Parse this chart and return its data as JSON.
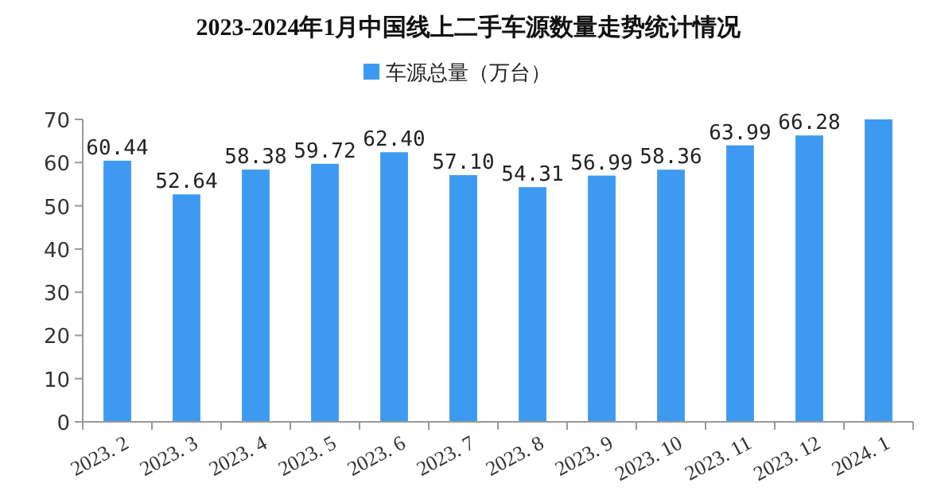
{
  "chart_data": {
    "type": "bar",
    "title": "2023-2024年1月中国线上二手车源数量走势统计情况",
    "categories": [
      "2023. 2",
      "2023. 3",
      "2023. 4",
      "2023. 5",
      "2023. 6",
      "2023. 7",
      "2023. 8",
      "2023. 9",
      "2023. 10",
      "2023. 11",
      "2023. 12",
      "2024. 1"
    ],
    "series": [
      {
        "name": "车源总量（万台）",
        "color": "#3d9af0",
        "values": [
          60.44,
          52.64,
          58.38,
          59.72,
          62.4,
          57.1,
          54.31,
          56.99,
          58.36,
          63.99,
          66.28,
          70
        ],
        "value_labels": [
          "60.44",
          "52.64",
          "58.38",
          "59.72",
          "62.40",
          "57.10",
          "54.31",
          "56.99",
          "58.36",
          "63.99",
          "66.28",
          null
        ]
      }
    ],
    "ylim": [
      0,
      70
    ],
    "yticks": [
      0,
      10,
      20,
      30,
      40,
      50,
      60,
      70
    ],
    "grid": false,
    "legend": "top"
  }
}
